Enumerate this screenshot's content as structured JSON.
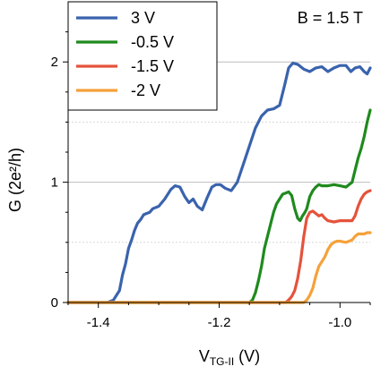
{
  "chart_data": {
    "type": "line",
    "xlabel_main": "V",
    "xlabel_sub": "TG-II",
    "xlabel_unit": " (V)",
    "ylabel": "G (2e²/h)",
    "annotation": "B = 1.5 T",
    "xlim": [
      -1.45,
      -0.95
    ],
    "ylim": [
      0,
      2.5
    ],
    "x_ticks": [
      -1.4,
      -1.2,
      -1.0
    ],
    "x_tick_labels": [
      "-1.4",
      "-1.2",
      "-1.0"
    ],
    "y_ticks": [
      0,
      1,
      2
    ],
    "y_tick_labels": [
      "0",
      "1",
      "2"
    ],
    "major_gridlines_y": [
      1,
      2
    ],
    "minor_gridlines_y": [
      0.5,
      1.5
    ],
    "legend_position": "top-left",
    "series": [
      {
        "name": "3 V",
        "color": "#3a63ad",
        "points": [
          [
            -1.45,
            0
          ],
          [
            -1.385,
            0
          ],
          [
            -1.375,
            0.02
          ],
          [
            -1.365,
            0.1
          ],
          [
            -1.36,
            0.23
          ],
          [
            -1.355,
            0.32
          ],
          [
            -1.35,
            0.45
          ],
          [
            -1.345,
            0.52
          ],
          [
            -1.34,
            0.6
          ],
          [
            -1.335,
            0.66
          ],
          [
            -1.33,
            0.69
          ],
          [
            -1.325,
            0.73
          ],
          [
            -1.32,
            0.74
          ],
          [
            -1.315,
            0.75
          ],
          [
            -1.31,
            0.78
          ],
          [
            -1.3,
            0.8
          ],
          [
            -1.29,
            0.86
          ],
          [
            -1.28,
            0.94
          ],
          [
            -1.273,
            0.97
          ],
          [
            -1.265,
            0.96
          ],
          [
            -1.257,
            0.88
          ],
          [
            -1.25,
            0.83
          ],
          [
            -1.243,
            0.86
          ],
          [
            -1.236,
            0.8
          ],
          [
            -1.228,
            0.77
          ],
          [
            -1.22,
            0.87
          ],
          [
            -1.212,
            0.96
          ],
          [
            -1.205,
            0.98
          ],
          [
            -1.198,
            0.98
          ],
          [
            -1.19,
            0.95
          ],
          [
            -1.18,
            0.93
          ],
          [
            -1.17,
            1.0
          ],
          [
            -1.16,
            1.15
          ],
          [
            -1.15,
            1.3
          ],
          [
            -1.14,
            1.45
          ],
          [
            -1.13,
            1.55
          ],
          [
            -1.12,
            1.6
          ],
          [
            -1.11,
            1.61
          ],
          [
            -1.1,
            1.64
          ],
          [
            -1.092,
            1.8
          ],
          [
            -1.085,
            1.95
          ],
          [
            -1.078,
            1.99
          ],
          [
            -1.07,
            1.98
          ],
          [
            -1.06,
            1.94
          ],
          [
            -1.05,
            1.92
          ],
          [
            -1.04,
            1.95
          ],
          [
            -1.03,
            1.96
          ],
          [
            -1.02,
            1.92
          ],
          [
            -1.01,
            1.95
          ],
          [
            -1.0,
            1.97
          ],
          [
            -0.99,
            1.97
          ],
          [
            -0.982,
            1.92
          ],
          [
            -0.975,
            1.95
          ],
          [
            -0.967,
            1.96
          ],
          [
            -0.96,
            1.92
          ],
          [
            -0.955,
            1.9
          ],
          [
            -0.95,
            1.95
          ]
        ]
      },
      {
        "name": "-0.5 V",
        "color": "#1f8a1e",
        "points": [
          [
            -1.45,
            0
          ],
          [
            -1.15,
            0
          ],
          [
            -1.145,
            0.02
          ],
          [
            -1.14,
            0.08
          ],
          [
            -1.135,
            0.18
          ],
          [
            -1.13,
            0.3
          ],
          [
            -1.125,
            0.45
          ],
          [
            -1.12,
            0.55
          ],
          [
            -1.115,
            0.65
          ],
          [
            -1.11,
            0.75
          ],
          [
            -1.105,
            0.82
          ],
          [
            -1.1,
            0.86
          ],
          [
            -1.095,
            0.9
          ],
          [
            -1.09,
            0.91
          ],
          [
            -1.085,
            0.92
          ],
          [
            -1.08,
            0.89
          ],
          [
            -1.075,
            0.78
          ],
          [
            -1.07,
            0.7
          ],
          [
            -1.066,
            0.68
          ],
          [
            -1.062,
            0.72
          ],
          [
            -1.058,
            0.75
          ],
          [
            -1.055,
            0.78
          ],
          [
            -1.05,
            0.88
          ],
          [
            -1.045,
            0.93
          ],
          [
            -1.04,
            0.96
          ],
          [
            -1.035,
            0.98
          ],
          [
            -1.03,
            0.97
          ],
          [
            -1.02,
            0.97
          ],
          [
            -1.01,
            0.98
          ],
          [
            -1.0,
            0.97
          ],
          [
            -0.99,
            0.96
          ],
          [
            -0.98,
            1.0
          ],
          [
            -0.975,
            1.1
          ],
          [
            -0.97,
            1.2
          ],
          [
            -0.965,
            1.28
          ],
          [
            -0.96,
            1.38
          ],
          [
            -0.955,
            1.5
          ],
          [
            -0.95,
            1.6
          ]
        ]
      },
      {
        "name": "-1.5 V",
        "color": "#e5533b",
        "points": [
          [
            -1.45,
            0
          ],
          [
            -1.09,
            0
          ],
          [
            -1.085,
            0.02
          ],
          [
            -1.08,
            0.05
          ],
          [
            -1.075,
            0.1
          ],
          [
            -1.07,
            0.2
          ],
          [
            -1.065,
            0.35
          ],
          [
            -1.06,
            0.55
          ],
          [
            -1.055,
            0.7
          ],
          [
            -1.05,
            0.75
          ],
          [
            -1.045,
            0.76
          ],
          [
            -1.04,
            0.74
          ],
          [
            -1.035,
            0.72
          ],
          [
            -1.03,
            0.73
          ],
          [
            -1.025,
            0.7
          ],
          [
            -1.02,
            0.68
          ],
          [
            -1.01,
            0.67
          ],
          [
            -1.0,
            0.68
          ],
          [
            -0.99,
            0.68
          ],
          [
            -0.98,
            0.68
          ],
          [
            -0.975,
            0.72
          ],
          [
            -0.97,
            0.8
          ],
          [
            -0.965,
            0.86
          ],
          [
            -0.96,
            0.9
          ],
          [
            -0.955,
            0.92
          ],
          [
            -0.95,
            0.93
          ]
        ]
      },
      {
        "name": "-2 V",
        "color": "#f5a13a",
        "points": [
          [
            -1.45,
            0
          ],
          [
            -1.06,
            0
          ],
          [
            -1.055,
            0.02
          ],
          [
            -1.05,
            0.06
          ],
          [
            -1.045,
            0.12
          ],
          [
            -1.04,
            0.22
          ],
          [
            -1.035,
            0.3
          ],
          [
            -1.03,
            0.34
          ],
          [
            -1.025,
            0.38
          ],
          [
            -1.02,
            0.44
          ],
          [
            -1.015,
            0.48
          ],
          [
            -1.01,
            0.5
          ],
          [
            -1.005,
            0.51
          ],
          [
            -1.0,
            0.51
          ],
          [
            -0.99,
            0.5
          ],
          [
            -0.985,
            0.51
          ],
          [
            -0.98,
            0.52
          ],
          [
            -0.975,
            0.55
          ],
          [
            -0.97,
            0.57
          ],
          [
            -0.96,
            0.57
          ],
          [
            -0.955,
            0.58
          ],
          [
            -0.95,
            0.58
          ]
        ]
      }
    ]
  }
}
